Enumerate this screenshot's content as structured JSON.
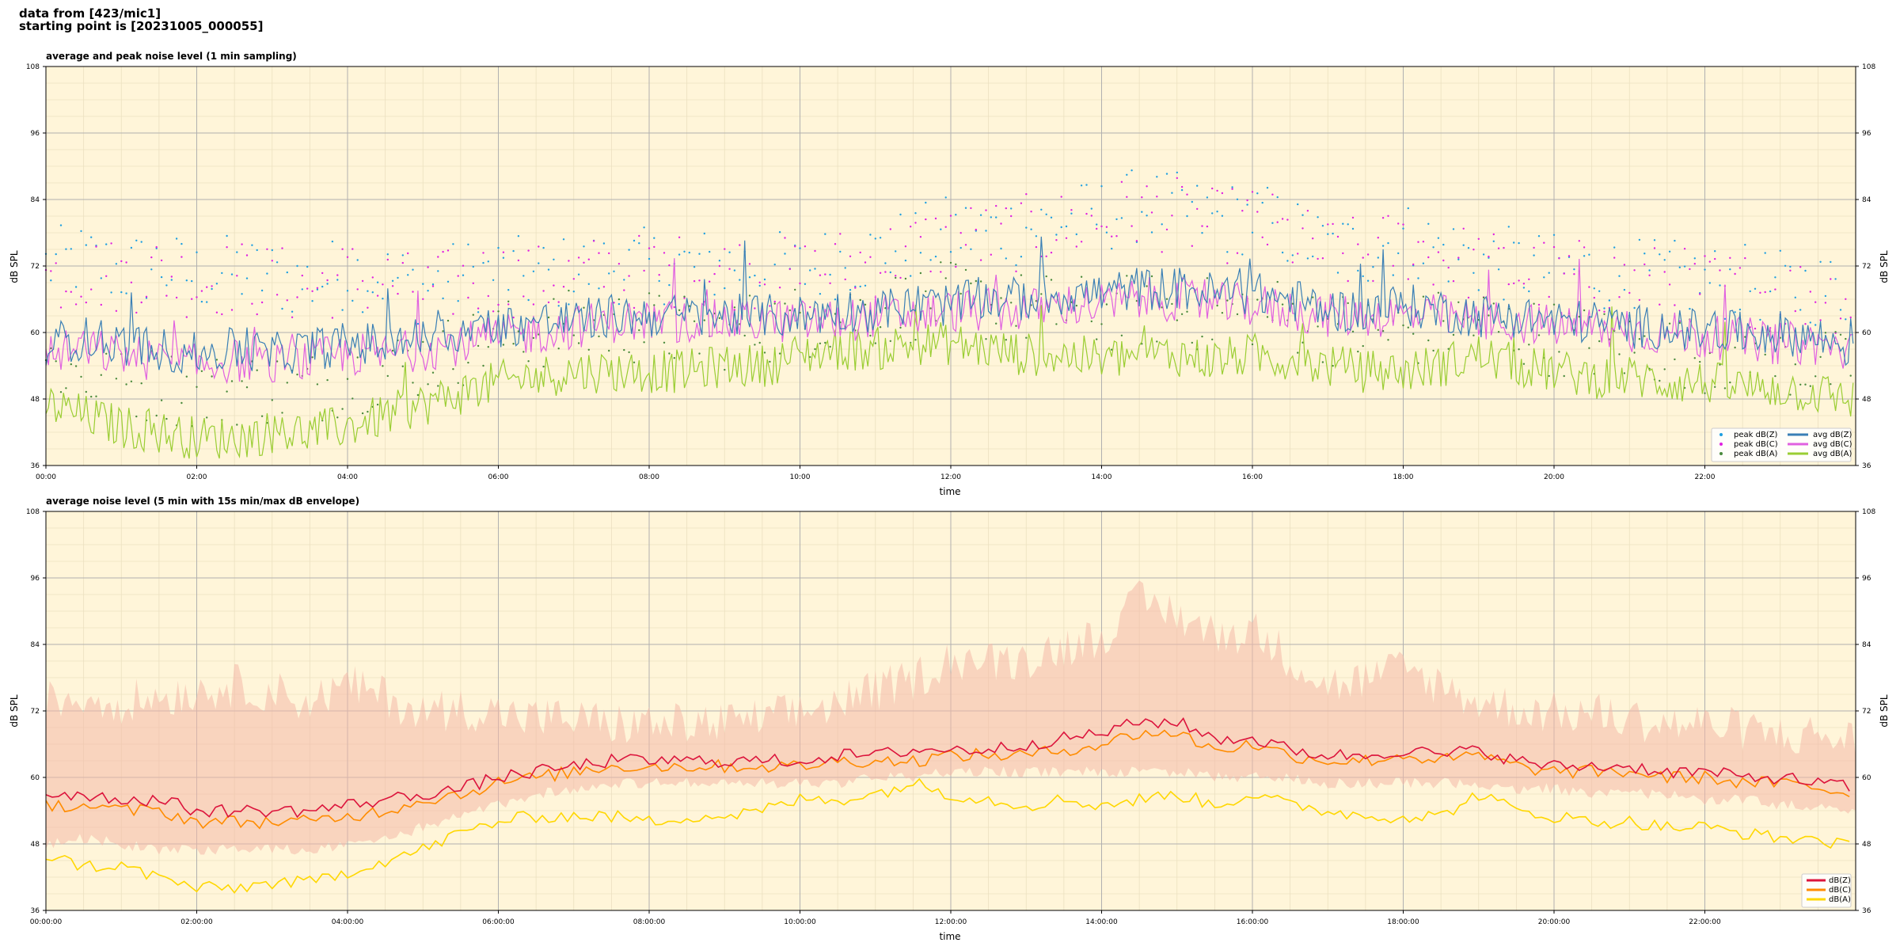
{
  "figure": {
    "suptitle_line1": "data from [423/mic1]",
    "suptitle_line2": "starting point is [20231005_000055]"
  },
  "chart_data": [
    {
      "type": "line",
      "title": "average and peak noise level (1 min sampling)",
      "xlabel": "time",
      "ylabel": "dB SPL",
      "ylim": [
        36,
        108
      ],
      "xlim_hours": [
        0,
        24
      ],
      "yticks": [
        "36",
        "48",
        "60",
        "72",
        "84",
        "96",
        "108"
      ],
      "xticks": [
        "00:00",
        "02:00",
        "04:00",
        "06:00",
        "08:00",
        "10:00",
        "12:00",
        "14:00",
        "16:00",
        "18:00",
        "20:00",
        "22:00"
      ],
      "grid": true,
      "background": "#fff5d9",
      "legend_position": "lower right",
      "x_hours": [
        0,
        0.5,
        1,
        1.5,
        2,
        2.5,
        3,
        3.5,
        4,
        4.5,
        5,
        5.5,
        6,
        6.5,
        7,
        7.5,
        8,
        8.5,
        9,
        9.5,
        10,
        10.5,
        11,
        11.5,
        12,
        12.5,
        13,
        13.5,
        14,
        14.5,
        15,
        15.5,
        16,
        16.5,
        17,
        17.5,
        18,
        18.5,
        19,
        19.5,
        20,
        20.5,
        21,
        21.5,
        22,
        22.5,
        23,
        23.5,
        24
      ],
      "series": [
        {
          "name": "peak dB(Z)",
          "kind": "scatter",
          "color": "#1f9fe0",
          "values": [
            72,
            73,
            71,
            72,
            70,
            71,
            70,
            69,
            71,
            70,
            68,
            70,
            71,
            70,
            71,
            72,
            72,
            72,
            72,
            72,
            71,
            73,
            74,
            76,
            78,
            78,
            79,
            80,
            81,
            83,
            82,
            80,
            81,
            78,
            75,
            75,
            77,
            75,
            73,
            72,
            71,
            71,
            70,
            70,
            69,
            69,
            68,
            68,
            67
          ]
        },
        {
          "name": "peak dB(C)",
          "kind": "scatter",
          "color": "#e020e0",
          "values": [
            70,
            71,
            70,
            71,
            69,
            70,
            69,
            68,
            70,
            69,
            67,
            69,
            70,
            69,
            70,
            71,
            71,
            71,
            71,
            71,
            70,
            72,
            73,
            75,
            77,
            77,
            78,
            79,
            80,
            82,
            81,
            79,
            80,
            77,
            74,
            74,
            76,
            74,
            72,
            71,
            70,
            70,
            69,
            69,
            68,
            68,
            67,
            67,
            66
          ]
        },
        {
          "name": "peak dB(A)",
          "kind": "scatter",
          "color": "#4a8a3c",
          "values": [
            55,
            52,
            50,
            51,
            49,
            50,
            50,
            50,
            52,
            53,
            55,
            57,
            59,
            60,
            61,
            61,
            61,
            60,
            60,
            61,
            62,
            63,
            64,
            65,
            66,
            65,
            64,
            64,
            63,
            64,
            64,
            63,
            64,
            63,
            61,
            60,
            60,
            61,
            62,
            60,
            59,
            58,
            57,
            57,
            56,
            56,
            55,
            54,
            53
          ]
        },
        {
          "name": "avg dB(Z)",
          "kind": "line",
          "color": "#3a7fb5",
          "values": [
            58,
            59,
            58,
            57,
            56,
            57,
            56,
            57,
            58,
            58,
            59,
            60,
            61,
            62,
            62,
            63,
            63,
            63,
            63,
            63,
            63,
            64,
            64,
            65,
            65,
            66,
            66,
            67,
            67,
            68,
            68,
            67,
            67,
            66,
            64,
            64,
            65,
            64,
            63,
            63,
            62,
            62,
            61,
            61,
            60,
            60,
            60,
            59,
            57
          ]
        },
        {
          "name": "avg dB(C)",
          "kind": "line",
          "color": "#e060e0",
          "values": [
            56,
            57,
            56,
            55,
            54,
            55,
            54,
            55,
            56,
            56,
            57,
            58,
            59,
            60,
            61,
            62,
            62,
            62,
            62,
            62,
            62,
            62,
            63,
            63,
            64,
            64,
            64,
            65,
            65,
            66,
            66,
            65,
            65,
            64,
            63,
            63,
            63,
            63,
            62,
            62,
            61,
            61,
            60,
            60,
            59,
            59,
            58,
            58,
            56
          ]
        },
        {
          "name": "avg dB(A)",
          "kind": "line",
          "color": "#9acd32",
          "values": [
            47,
            45,
            43,
            42,
            41,
            41,
            42,
            42,
            43,
            45,
            47,
            49,
            51,
            52,
            53,
            53,
            53,
            53,
            54,
            54,
            56,
            57,
            57,
            58,
            58,
            57,
            56,
            56,
            55,
            56,
            56,
            55,
            56,
            55,
            54,
            53,
            53,
            54,
            56,
            54,
            53,
            52,
            52,
            51,
            51,
            50,
            50,
            49,
            48
          ]
        }
      ]
    },
    {
      "type": "line",
      "title": "average noise level (5 min with 15s min/max dB envelope)",
      "xlabel": "time",
      "ylabel": "dB SPL",
      "ylim": [
        36,
        108
      ],
      "xlim_hours": [
        0,
        24
      ],
      "yticks": [
        "36",
        "48",
        "60",
        "72",
        "84",
        "96",
        "108"
      ],
      "xticks": [
        "00:00:00",
        "02:00:00",
        "04:00:00",
        "06:00:00",
        "08:00:00",
        "10:00:00",
        "12:00:00",
        "14:00:00",
        "16:00:00",
        "18:00:00",
        "20:00:00",
        "22:00:00"
      ],
      "grid": true,
      "background": "#fff5d9",
      "legend_position": "lower right",
      "envelope_color": "#f4b8a8",
      "x_hours": [
        0,
        0.5,
        1,
        1.5,
        2,
        2.5,
        3,
        3.5,
        4,
        4.5,
        5,
        5.5,
        6,
        6.5,
        7,
        7.5,
        8,
        8.5,
        9,
        9.5,
        10,
        10.5,
        11,
        11.5,
        12,
        12.5,
        13,
        13.5,
        14,
        14.5,
        15,
        15.5,
        16,
        16.5,
        17,
        17.5,
        18,
        18.5,
        19,
        19.5,
        20,
        20.5,
        21,
        21.5,
        22,
        22.5,
        23,
        23.5,
        24
      ],
      "envelope_max": [
        72,
        73,
        72,
        73,
        74,
        75,
        74,
        72,
        75,
        73,
        70,
        71,
        70,
        69,
        69,
        68,
        68,
        68,
        68,
        69,
        70,
        72,
        74,
        76,
        80,
        79,
        80,
        82,
        84,
        90,
        88,
        84,
        85,
        80,
        75,
        76,
        78,
        75,
        72,
        71,
        70,
        70,
        69,
        68,
        68,
        67,
        66,
        66,
        65
      ],
      "envelope_min": [
        49,
        50,
        49,
        48,
        48,
        48,
        48,
        48,
        49,
        50,
        52,
        54,
        56,
        58,
        59,
        60,
        60,
        60,
        60,
        60,
        60,
        60,
        61,
        61,
        62,
        62,
        62,
        62,
        62,
        62,
        62,
        61,
        61,
        61,
        60,
        60,
        60,
        60,
        60,
        59,
        59,
        58,
        58,
        58,
        57,
        57,
        56,
        56,
        55
      ],
      "series": [
        {
          "name": "dB(Z)",
          "color": "#dc143c",
          "values": [
            57,
            57,
            56,
            56,
            54,
            54,
            54,
            54,
            55,
            56,
            57,
            58,
            60,
            61,
            62,
            63,
            63,
            63,
            63,
            63,
            63,
            64,
            64,
            65,
            65,
            65,
            66,
            67,
            68,
            70,
            70,
            67,
            67,
            65,
            64,
            64,
            65,
            64,
            65,
            63,
            62,
            62,
            62,
            61,
            61,
            60,
            60,
            59,
            58
          ]
        },
        {
          "name": "dB(C)",
          "color": "#ff8c00",
          "values": [
            55,
            55,
            54,
            54,
            52,
            52,
            52,
            52,
            53,
            54,
            56,
            57,
            59,
            60,
            61,
            62,
            62,
            62,
            62,
            62,
            62,
            63,
            63,
            63,
            64,
            64,
            64,
            65,
            66,
            68,
            68,
            65,
            66,
            64,
            63,
            63,
            64,
            63,
            64,
            62,
            61,
            61,
            61,
            60,
            60,
            59,
            59,
            58,
            57
          ]
        },
        {
          "name": "dB(A)",
          "color": "#ffd700",
          "values": [
            46,
            44,
            44,
            42,
            40,
            40,
            41,
            41,
            43,
            45,
            47,
            50,
            52,
            53,
            53,
            53,
            52,
            53,
            53,
            54,
            56,
            56,
            57,
            59,
            57,
            56,
            55,
            56,
            55,
            56,
            57,
            55,
            57,
            55,
            54,
            53,
            53,
            53,
            57,
            54,
            53,
            52,
            52,
            51,
            51,
            50,
            49,
            49,
            47
          ]
        }
      ]
    }
  ]
}
